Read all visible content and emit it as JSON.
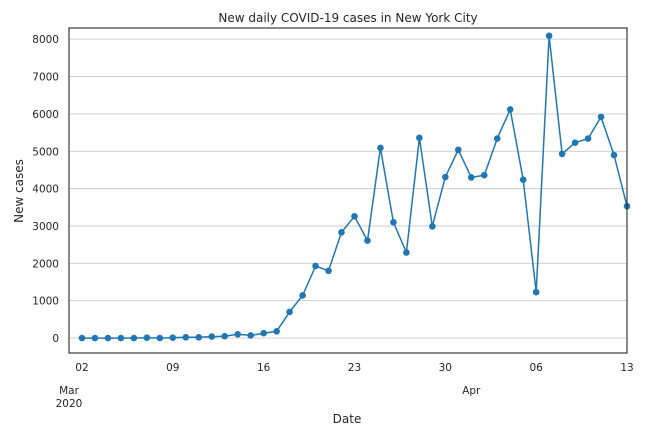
{
  "colors": {
    "series": "#1f77b4",
    "frame": "#262626",
    "grid": "#cccccc"
  },
  "chart_data": {
    "type": "line",
    "title": "New daily COVID-19 cases in New York City",
    "xlabel": "Date",
    "ylabel": "New cases",
    "grid": "horizontal",
    "markers": "circle",
    "xlim": [
      "2020-03-01",
      "2020-04-13"
    ],
    "ylim": [
      -400,
      8300
    ],
    "y_ticks": [
      0,
      1000,
      2000,
      3000,
      4000,
      5000,
      6000,
      7000,
      8000
    ],
    "y_tick_labels": [
      "0",
      "1000",
      "2000",
      "3000",
      "4000",
      "5000",
      "6000",
      "7000",
      "8000"
    ],
    "x_ticks": [
      "2020-03-02",
      "2020-03-09",
      "2020-03-16",
      "2020-03-23",
      "2020-03-30",
      "2020-04-06",
      "2020-04-13"
    ],
    "x_tick_labels": [
      "02",
      "09",
      "16",
      "23",
      "30",
      "06",
      "13"
    ],
    "x_month_labels": [
      {
        "date": "2020-03-01",
        "line1": "Mar",
        "line2": "2020"
      },
      {
        "date": "2020-04-01",
        "line1": "Apr",
        "line2": ""
      }
    ],
    "series": [
      {
        "x": [
          "2020-03-02",
          "2020-03-03",
          "2020-03-04",
          "2020-03-05",
          "2020-03-06",
          "2020-03-07",
          "2020-03-08",
          "2020-03-09",
          "2020-03-10",
          "2020-03-11",
          "2020-03-12",
          "2020-03-13",
          "2020-03-14",
          "2020-03-15",
          "2020-03-16",
          "2020-03-17",
          "2020-03-18",
          "2020-03-19",
          "2020-03-20",
          "2020-03-21",
          "2020-03-22",
          "2020-03-23",
          "2020-03-24",
          "2020-03-25",
          "2020-03-26",
          "2020-03-27",
          "2020-03-28",
          "2020-03-29",
          "2020-03-30",
          "2020-03-31",
          "2020-04-01",
          "2020-04-02",
          "2020-04-03",
          "2020-04-04",
          "2020-04-05",
          "2020-04-06",
          "2020-04-07",
          "2020-04-08",
          "2020-04-09",
          "2020-04-10",
          "2020-04-11",
          "2020-04-12",
          "2020-04-13"
        ],
        "values": [
          0,
          0,
          0,
          0,
          0,
          10,
          0,
          10,
          20,
          20,
          40,
          50,
          100,
          70,
          130,
          180,
          700,
          1140,
          1930,
          1800,
          2830,
          3260,
          2610,
          5090,
          3100,
          2290,
          5360,
          2990,
          4310,
          5040,
          4300,
          4360,
          5340,
          6120,
          4240,
          1230,
          8090,
          4930,
          5230,
          5340,
          5920,
          4900,
          3530
        ]
      }
    ]
  }
}
